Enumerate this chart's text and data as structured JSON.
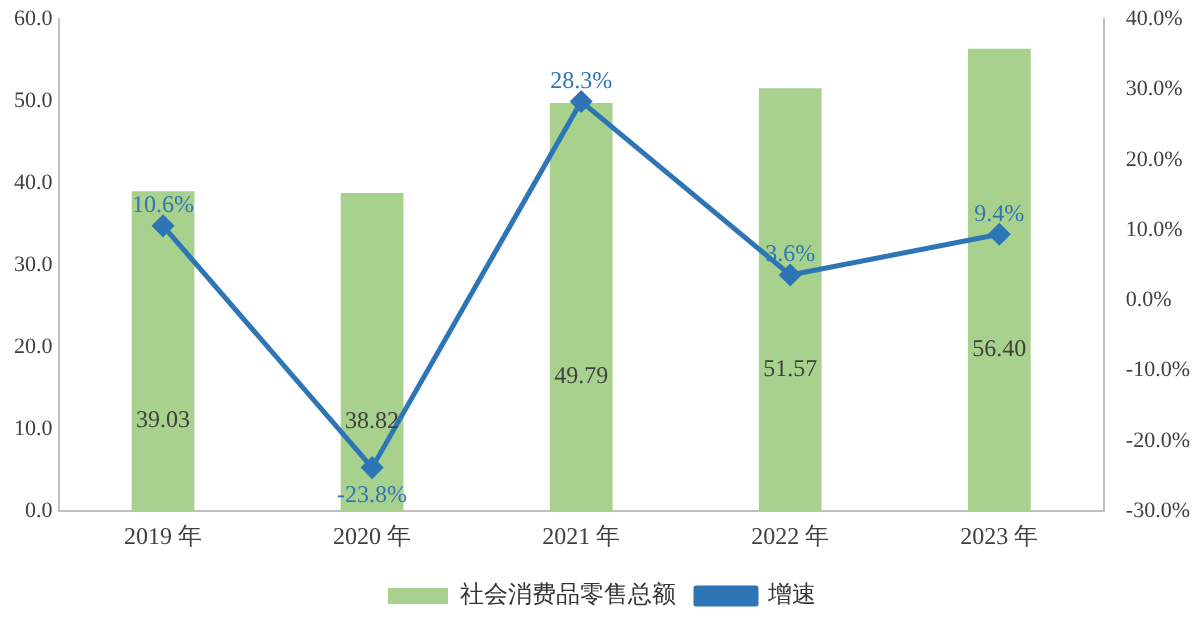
{
  "chart_data": {
    "type": "bar",
    "categories": [
      "2019 年",
      "2020 年",
      "2021 年",
      "2022 年",
      "2023 年"
    ],
    "series": [
      {
        "name": "社会消费品零售总额",
        "color": "#a9d18e",
        "values": [
          39.03,
          38.82,
          49.79,
          51.57,
          56.4
        ],
        "value_labels": [
          "39.03",
          "38.82",
          "49.79",
          "51.57",
          "56.40"
        ]
      },
      {
        "name": "增速",
        "type": "line",
        "axis": "y2",
        "color": "#2e75b6",
        "marker": "diamond",
        "values": [
          10.6,
          -23.8,
          28.3,
          3.6,
          9.4
        ],
        "value_labels": [
          "10.6%",
          "-23.8%",
          "28.3%",
          "3.6%",
          "9.4%"
        ]
      }
    ],
    "ylim": [
      0,
      60
    ],
    "yticks": [
      {
        "value": 0,
        "label": "0.0"
      },
      {
        "value": 10,
        "label": "10.0"
      },
      {
        "value": 20,
        "label": "20.0"
      },
      {
        "value": 30,
        "label": "30.0"
      },
      {
        "value": 40,
        "label": "40.0"
      },
      {
        "value": 50,
        "label": "50.0"
      },
      {
        "value": 60,
        "label": "60.0"
      }
    ],
    "y2lim": [
      -30,
      40
    ],
    "y2ticks": [
      {
        "value": -30,
        "label": "-30.0%"
      },
      {
        "value": -20,
        "label": "-20.0%"
      },
      {
        "value": -10,
        "label": "-10.0%"
      },
      {
        "value": 0,
        "label": "0.0%"
      },
      {
        "value": 10,
        "label": "10.0%"
      },
      {
        "value": 20,
        "label": "20.0%"
      },
      {
        "value": 30,
        "label": "30.0%"
      },
      {
        "value": 40,
        "label": "40.0%"
      }
    ],
    "grid": false,
    "legend": "bottom"
  }
}
